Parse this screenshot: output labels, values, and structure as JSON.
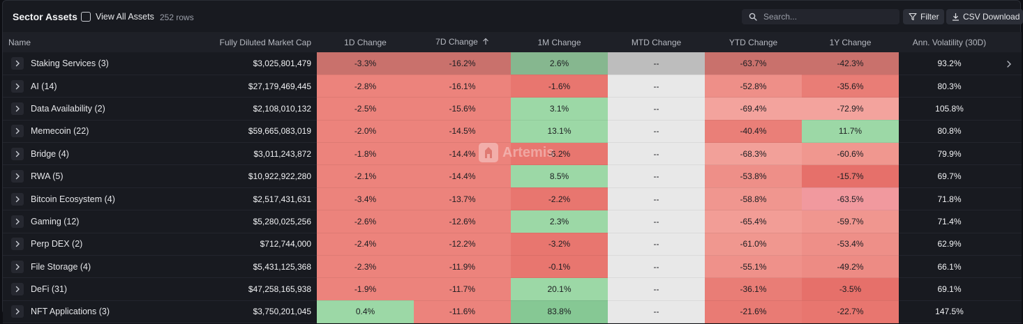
{
  "toolbar": {
    "title": "Sector Assets",
    "view_all_label": "View All Assets",
    "row_count": "252 rows",
    "search_placeholder": "Search...",
    "filter_label": "Filter",
    "csv_label": "CSV Download"
  },
  "watermark": {
    "text": "Artemis"
  },
  "columns": {
    "name": "Name",
    "fdmc": "Fully Diluted Market Cap",
    "d1": "1D Change",
    "d7": "7D Change",
    "m1": "1M Change",
    "mtd": "MTD Change",
    "ytd": "YTD Change",
    "y1": "1Y Change",
    "vol": "Ann. Volatility (30D)"
  },
  "sort": {
    "column": "7D Change",
    "direction": "ascending"
  },
  "rows": [
    {
      "name": "Staking Services (3)",
      "fdmc": "$3,025,801,479",
      "d1": "-3.3%",
      "d7": "-16.2%",
      "m1": "2.6%",
      "mtd": "--",
      "ytd": "-63.7%",
      "y1": "-42.3%",
      "vol": "93.2%",
      "colors": {
        "d1": "#c9716c",
        "d7": "#c9716c",
        "m1": "#86b78f",
        "mtd": "#bdbdbd",
        "ytd": "#c9716c",
        "y1": "#c9716c"
      }
    },
    {
      "name": "AI (14)",
      "fdmc": "$27,179,469,445",
      "d1": "-2.8%",
      "d7": "-16.1%",
      "m1": "-1.6%",
      "mtd": "--",
      "ytd": "-52.8%",
      "y1": "-35.6%",
      "vol": "80.3%",
      "colors": {
        "d1": "#ec837c",
        "d7": "#ec837c",
        "m1": "#e8766f",
        "mtd": "#e8e8e8",
        "ytd": "#ee8f88",
        "y1": "#e97d76"
      }
    },
    {
      "name": "Data Availability (2)",
      "fdmc": "$2,108,010,132",
      "d1": "-2.5%",
      "d7": "-15.6%",
      "m1": "3.1%",
      "mtd": "--",
      "ytd": "-69.4%",
      "y1": "-72.9%",
      "vol": "105.8%",
      "colors": {
        "d1": "#ec837c",
        "d7": "#ec837c",
        "m1": "#9cd8a6",
        "mtd": "#e8e8e8",
        "ytd": "#f3a39d",
        "y1": "#f3a39d"
      }
    },
    {
      "name": "Memecoin (22)",
      "fdmc": "$59,665,083,019",
      "d1": "-2.0%",
      "d7": "-14.5%",
      "m1": "13.1%",
      "mtd": "--",
      "ytd": "-40.4%",
      "y1": "11.7%",
      "vol": "80.8%",
      "colors": {
        "d1": "#ec837c",
        "d7": "#ec837c",
        "m1": "#9cd8a6",
        "mtd": "#e8e8e8",
        "ytd": "#ea7f78",
        "y1": "#9cd8a6"
      }
    },
    {
      "name": "Bridge (4)",
      "fdmc": "$3,011,243,872",
      "d1": "-1.8%",
      "d7": "-14.4%",
      "m1": "-6.2%",
      "mtd": "--",
      "ytd": "-68.3%",
      "y1": "-60.6%",
      "vol": "79.9%",
      "colors": {
        "d1": "#ec837c",
        "d7": "#ec837c",
        "m1": "#e8766f",
        "mtd": "#e8e8e8",
        "ytd": "#f2a099",
        "y1": "#f0978f"
      }
    },
    {
      "name": "RWA (5)",
      "fdmc": "$10,922,922,280",
      "d1": "-2.1%",
      "d7": "-14.4%",
      "m1": "8.5%",
      "mtd": "--",
      "ytd": "-53.8%",
      "y1": "-15.7%",
      "vol": "69.7%",
      "colors": {
        "d1": "#ec837c",
        "d7": "#ec837c",
        "m1": "#9cd8a6",
        "mtd": "#e8e8e8",
        "ytd": "#ee8f88",
        "y1": "#e6706a"
      }
    },
    {
      "name": "Bitcoin Ecosystem (4)",
      "fdmc": "$2,517,431,631",
      "d1": "-3.4%",
      "d7": "-13.7%",
      "m1": "-2.2%",
      "mtd": "--",
      "ytd": "-58.8%",
      "y1": "-63.5%",
      "vol": "71.8%",
      "colors": {
        "d1": "#ec837c",
        "d7": "#ec837c",
        "m1": "#e8766f",
        "mtd": "#e8e8e8",
        "ytd": "#f0968f",
        "y1": "#f1999e"
      }
    },
    {
      "name": "Gaming (12)",
      "fdmc": "$5,280,025,256",
      "d1": "-2.6%",
      "d7": "-12.6%",
      "m1": "2.3%",
      "mtd": "--",
      "ytd": "-65.4%",
      "y1": "-59.7%",
      "vol": "71.4%",
      "colors": {
        "d1": "#ec837c",
        "d7": "#ec837c",
        "m1": "#9cd8a6",
        "mtd": "#e8e8e8",
        "ytd": "#f29d96",
        "y1": "#f0968f"
      }
    },
    {
      "name": "Perp DEX (2)",
      "fdmc": "$712,744,000",
      "d1": "-2.4%",
      "d7": "-12.2%",
      "m1": "-3.2%",
      "mtd": "--",
      "ytd": "-61.0%",
      "y1": "-53.4%",
      "vol": "62.9%",
      "colors": {
        "d1": "#ec837c",
        "d7": "#ec837c",
        "m1": "#e8766f",
        "mtd": "#e8e8e8",
        "ytd": "#f0978f",
        "y1": "#ee8f88"
      }
    },
    {
      "name": "File Storage (4)",
      "fdmc": "$5,431,125,368",
      "d1": "-2.3%",
      "d7": "-11.9%",
      "m1": "-0.1%",
      "mtd": "--",
      "ytd": "-55.1%",
      "y1": "-49.2%",
      "vol": "66.1%",
      "colors": {
        "d1": "#ec837c",
        "d7": "#ec837c",
        "m1": "#e8766f",
        "mtd": "#e8e8e8",
        "ytd": "#ef918a",
        "y1": "#ed8b84"
      }
    },
    {
      "name": "DeFi (31)",
      "fdmc": "$47,258,165,938",
      "d1": "-1.9%",
      "d7": "-11.7%",
      "m1": "20.1%",
      "mtd": "--",
      "ytd": "-36.1%",
      "y1": "-3.5%",
      "vol": "69.1%",
      "colors": {
        "d1": "#ec837c",
        "d7": "#ec837c",
        "m1": "#9cd8a6",
        "mtd": "#e8e8e8",
        "ytd": "#e97d76",
        "y1": "#e6706a"
      }
    },
    {
      "name": "NFT Applications (3)",
      "fdmc": "$3,750,201,045",
      "d1": "0.4%",
      "d7": "-11.6%",
      "m1": "83.8%",
      "mtd": "--",
      "ytd": "-21.6%",
      "y1": "-22.7%",
      "vol": "147.5%",
      "colors": {
        "d1": "#9cd8a6",
        "d7": "#ec837c",
        "m1": "#86c894",
        "mtd": "#e8e8e8",
        "ytd": "#e97b74",
        "y1": "#e8766f"
      }
    }
  ]
}
